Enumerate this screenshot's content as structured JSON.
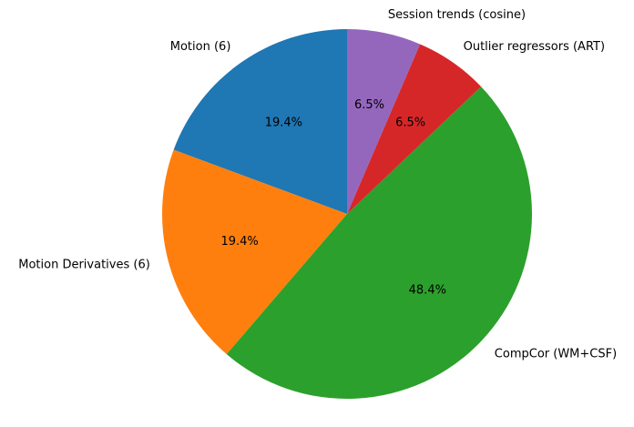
{
  "chart_data": {
    "type": "pie",
    "title": "",
    "start_angle_deg": 90,
    "direction": "counterclockwise",
    "slices": [
      {
        "label": "Motion (6)",
        "value": 6,
        "pct_label": "19.4%",
        "color": "#1f77b4"
      },
      {
        "label": "Motion Derivatives (6)",
        "value": 6,
        "pct_label": "19.4%",
        "color": "#ff7f0e"
      },
      {
        "label": "CompCor (WM+CSF)",
        "value": 15,
        "pct_label": "48.4%",
        "color": "#2ca02c"
      },
      {
        "label": "Outlier regressors (ART)",
        "value": 2,
        "pct_label": "6.5%",
        "color": "#d62728"
      },
      {
        "label": "Session trends (cosine)",
        "value": 2,
        "pct_label": "6.5%",
        "color": "#9467bd"
      }
    ]
  }
}
